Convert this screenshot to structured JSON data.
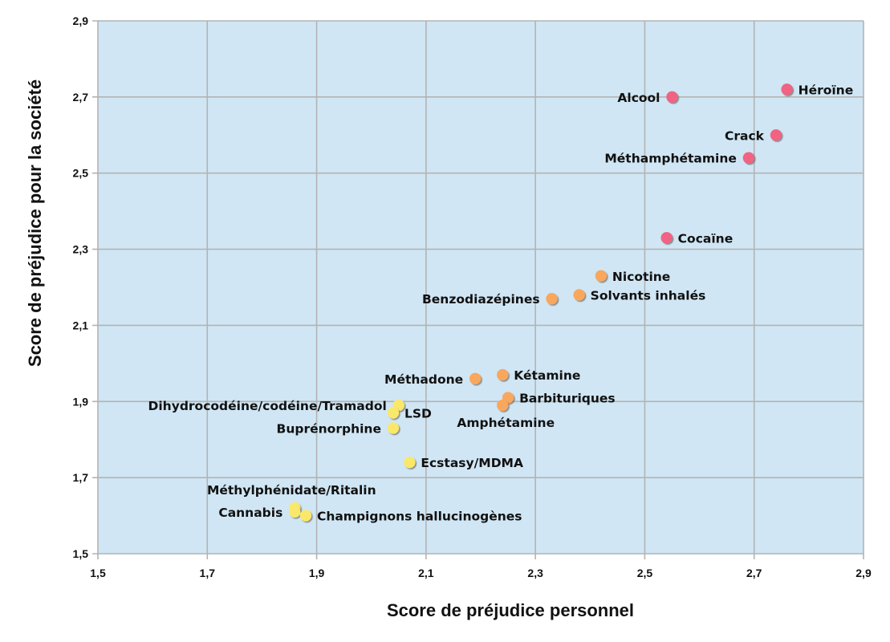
{
  "chart_data": {
    "type": "scatter",
    "title": "",
    "xlabel": "Score de préjudice personnel",
    "ylabel": "Score de préjudice pour la société",
    "xlim": [
      1.5,
      2.9
    ],
    "ylim": [
      1.5,
      2.9
    ],
    "x_ticks": [
      "1,5",
      "1,7",
      "1,9",
      "2,1",
      "2,3",
      "2,5",
      "2,7",
      "2,9"
    ],
    "y_ticks": [
      "1,5",
      "1,7",
      "1,9",
      "2,1",
      "2,3",
      "2,5",
      "2,7",
      "2,9"
    ],
    "grid": true,
    "legend": null,
    "colors": {
      "high": "#F06383",
      "medium": "#F9A75C",
      "low": "#FAE86A",
      "plot_background": "#D0E6F4",
      "grid": "#B3B3B3"
    },
    "points": [
      {
        "label": "Héroïne",
        "x": 2.76,
        "y": 2.72,
        "group": "high",
        "label_side": "right"
      },
      {
        "label": "Alcool",
        "x": 2.55,
        "y": 2.7,
        "group": "high",
        "label_side": "left"
      },
      {
        "label": "Crack",
        "x": 2.74,
        "y": 2.6,
        "group": "high",
        "label_side": "left"
      },
      {
        "label": "Méthamphétamine",
        "x": 2.69,
        "y": 2.54,
        "group": "high",
        "label_side": "left"
      },
      {
        "label": "Cocaïne",
        "x": 2.54,
        "y": 2.33,
        "group": "high",
        "label_side": "right"
      },
      {
        "label": "Nicotine",
        "x": 2.42,
        "y": 2.23,
        "group": "medium",
        "label_side": "right"
      },
      {
        "label": "Solvants inhalés",
        "x": 2.38,
        "y": 2.18,
        "group": "medium",
        "label_side": "right"
      },
      {
        "label": "Benzodiazépines",
        "x": 2.33,
        "y": 2.17,
        "group": "medium",
        "label_side": "left"
      },
      {
        "label": "Méthadone",
        "x": 2.19,
        "y": 1.96,
        "group": "medium",
        "label_side": "left"
      },
      {
        "label": "Kétamine",
        "x": 2.24,
        "y": 1.97,
        "group": "medium",
        "label_side": "right"
      },
      {
        "label": "Barbituriques",
        "x": 2.25,
        "y": 1.91,
        "group": "medium",
        "label_side": "right"
      },
      {
        "label": "Amphétamine",
        "x": 2.24,
        "y": 1.89,
        "group": "medium",
        "label_side": "below"
      },
      {
        "label": "Dihydrocodéine/codéine/Tramadol",
        "x": 2.05,
        "y": 1.89,
        "group": "low",
        "label_side": "left"
      },
      {
        "label": "LSD",
        "x": 2.04,
        "y": 1.87,
        "group": "low",
        "label_side": "right"
      },
      {
        "label": "Buprénorphine",
        "x": 2.04,
        "y": 1.83,
        "group": "low",
        "label_side": "left"
      },
      {
        "label": "Ecstasy/MDMA",
        "x": 2.07,
        "y": 1.74,
        "group": "low",
        "label_side": "right"
      },
      {
        "label": "Méthylphénidate/Ritalin",
        "x": 1.86,
        "y": 1.62,
        "group": "low",
        "label_side": "above"
      },
      {
        "label": "Cannabis",
        "x": 1.86,
        "y": 1.61,
        "group": "low",
        "label_side": "left"
      },
      {
        "label": "Champignons hallucinogènes",
        "x": 1.88,
        "y": 1.6,
        "group": "low",
        "label_side": "right"
      }
    ]
  }
}
